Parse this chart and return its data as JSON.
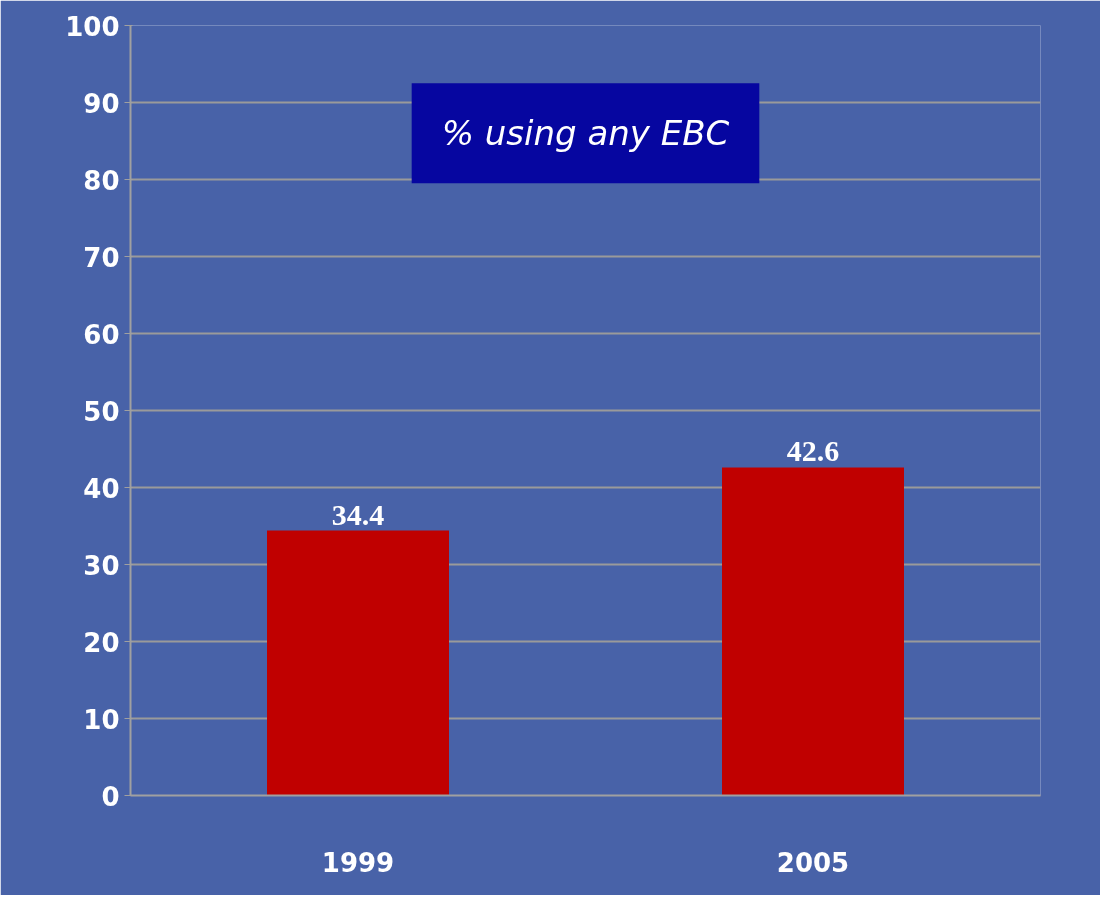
{
  "chart_data": {
    "type": "bar",
    "title": "% using any EBC",
    "categories": [
      "1999",
      "2005"
    ],
    "values": [
      34.4,
      42.6
    ],
    "color": "#c00000",
    "ylim": [
      0,
      100
    ],
    "yticks": [
      0,
      10,
      20,
      30,
      40,
      50,
      60,
      70,
      80,
      90,
      100
    ],
    "grid": "y",
    "data_labels": true
  }
}
